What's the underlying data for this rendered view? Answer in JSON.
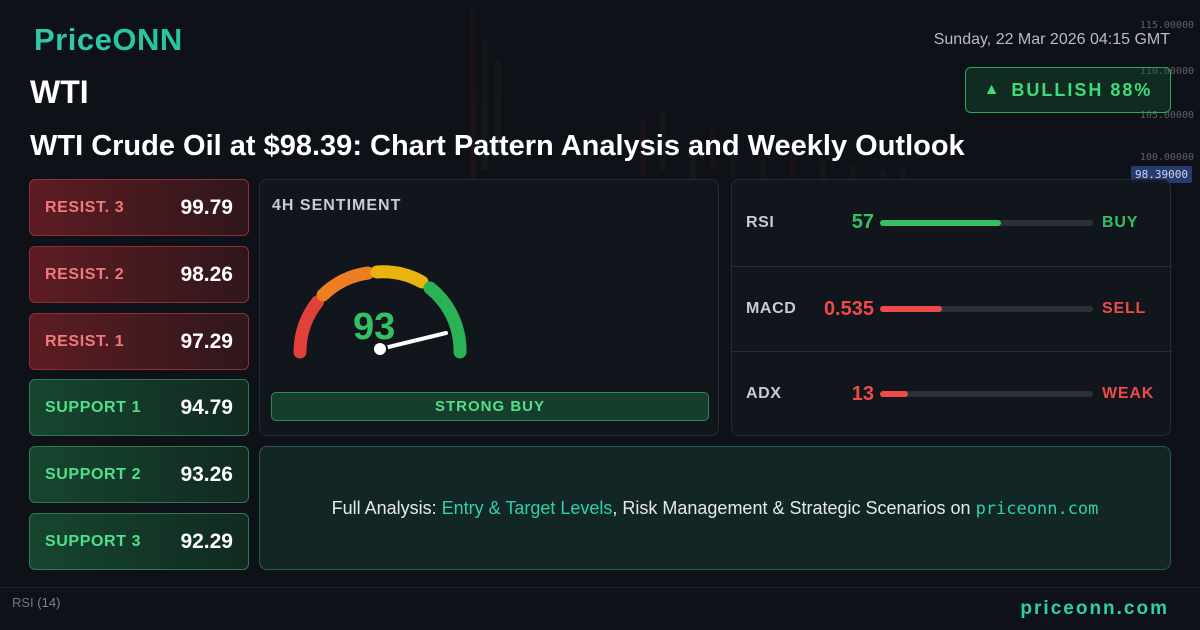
{
  "brand": {
    "name_a": "Price",
    "name_b": "ONN"
  },
  "date": "Sunday, 22 Mar 2026 04:15 GMT",
  "symbol": "WTI",
  "bias": {
    "icon": "triangle-up-icon",
    "label": "BULLISH 88%"
  },
  "headline": "WTI Crude Oil at $98.39: Chart Pattern Analysis and Weekly Outlook",
  "levels": [
    {
      "label": "RESIST. 3",
      "value": "99.79"
    },
    {
      "label": "RESIST. 2",
      "value": "98.26"
    },
    {
      "label": "RESIST. 1",
      "value": "97.29"
    },
    {
      "label": "SUPPORT 1",
      "value": "94.79"
    },
    {
      "label": "SUPPORT 2",
      "value": "93.26"
    },
    {
      "label": "SUPPORT 3",
      "value": "92.29"
    }
  ],
  "sentiment": {
    "title": "4H SENTIMENT",
    "value": "93",
    "signal": "STRONG BUY"
  },
  "indicators": [
    {
      "name": "RSI",
      "value": "57",
      "level": 0.57,
      "signal": "BUY"
    },
    {
      "name": "MACD",
      "value": "0.535",
      "level": 0.29,
      "signal": "SELL"
    },
    {
      "name": "ADX",
      "value": "13",
      "level": 0.13,
      "signal": "WEAK"
    }
  ],
  "cta": {
    "prefix": "Full Analysis: ",
    "highlight": "Entry & Target Levels",
    "middle": ", Risk Management & Strategic Scenarios on ",
    "site": "priceonn.com"
  },
  "footer": {
    "site": "priceonn.com",
    "rsi_label": "RSI",
    "rsi_period": "(14)"
  },
  "axis": [
    "115.00000",
    "110.00000",
    "105.00000",
    "100.00000"
  ],
  "last_price": "98.39000",
  "colors": {
    "accent": "#2fd0a8",
    "bull": "#35c163",
    "bear": "#ef4a4a"
  }
}
